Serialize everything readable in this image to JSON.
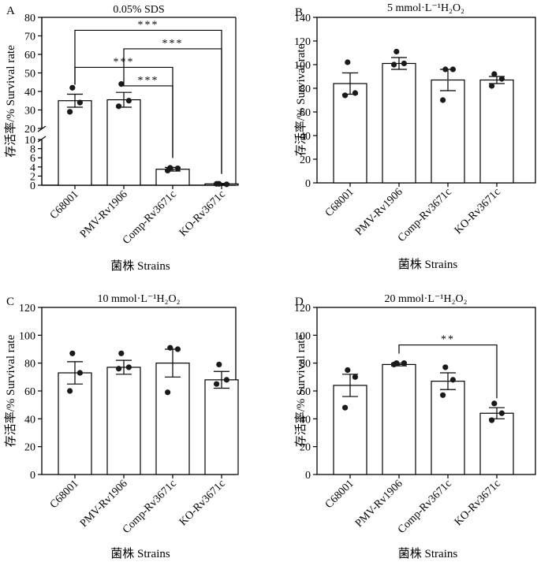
{
  "figure": {
    "xlabel": "菌株 Strains",
    "ylabel": "存活率/% Survival rate"
  },
  "chart_data": [
    {
      "panel": "A",
      "title": "0.05% SDS",
      "type": "bar",
      "broken_axis": true,
      "upper_ylim": [
        20,
        80
      ],
      "upper_ticks": [
        20,
        30,
        40,
        50,
        60,
        70,
        80
      ],
      "lower_ylim": [
        0,
        10
      ],
      "lower_ticks": [
        0,
        2,
        4,
        6,
        8,
        10
      ],
      "categories": [
        "C68001",
        "PMV-Rv1906",
        "Comp-Rv3671c",
        "KO-Rv3671c"
      ],
      "values": [
        35,
        35.5,
        3.5,
        0.3
      ],
      "sem": [
        3.5,
        4,
        0.4,
        0.1
      ],
      "points": [
        [
          42,
          34,
          29
        ],
        [
          44,
          35,
          32
        ],
        [
          3.8,
          3.7,
          3.2
        ],
        [
          0.3,
          0.2,
          0.3
        ]
      ],
      "significance": [
        {
          "from": 0,
          "to": 3,
          "label": "***",
          "y": 73
        },
        {
          "from": 1,
          "to": 3,
          "label": "***",
          "y": 63
        },
        {
          "from": 0,
          "to": 2,
          "label": "***",
          "y": 53
        },
        {
          "from": 1,
          "to": 2,
          "label": "***",
          "y": 43
        }
      ]
    },
    {
      "panel": "B",
      "title": "5 mmol·L⁻¹H₂O₂",
      "type": "bar",
      "ylim": [
        0,
        140
      ],
      "ticks": [
        0,
        20,
        40,
        60,
        80,
        100,
        120,
        140
      ],
      "categories": [
        "C68001",
        "PMV-Rv1906",
        "Comp-Rv3671c",
        "KO-Rv3671c"
      ],
      "values": [
        84,
        101,
        87,
        87
      ],
      "sem": [
        9,
        5,
        9,
        3
      ],
      "points": [
        [
          102,
          76,
          74
        ],
        [
          111,
          101,
          100
        ],
        [
          96,
          96,
          70
        ],
        [
          92,
          88,
          82
        ]
      ],
      "significance": []
    },
    {
      "panel": "C",
      "title": "10 mmol·L⁻¹H₂O₂",
      "type": "bar",
      "ylim": [
        0,
        120
      ],
      "ticks": [
        0,
        20,
        40,
        60,
        80,
        100,
        120
      ],
      "categories": [
        "C68001",
        "PMV-Rv1906",
        "Comp-Rv3671c",
        "KO-Rv3671c"
      ],
      "values": [
        73,
        77,
        80,
        68
      ],
      "sem": [
        8,
        5,
        10,
        6
      ],
      "points": [
        [
          87,
          73,
          60
        ],
        [
          87,
          77,
          76
        ],
        [
          91,
          90,
          59
        ],
        [
          79,
          68,
          65
        ]
      ],
      "significance": []
    },
    {
      "panel": "D",
      "title": "20 mmol·L⁻¹H₂O₂",
      "type": "bar",
      "ylim": [
        0,
        120
      ],
      "ticks": [
        0,
        20,
        40,
        60,
        80,
        100,
        120
      ],
      "categories": [
        "C68001",
        "PMV-Rv1906",
        "Comp-Rv3671c",
        "KO-Rv3671c"
      ],
      "values": [
        64,
        79,
        67,
        44
      ],
      "sem": [
        8,
        1,
        6,
        4
      ],
      "points": [
        [
          75,
          70,
          48
        ],
        [
          80,
          80,
          79
        ],
        [
          77,
          68,
          57
        ],
        [
          51,
          44,
          39
        ]
      ],
      "significance": [
        {
          "from": 1,
          "to": 3,
          "label": "**",
          "y": 93
        }
      ]
    }
  ]
}
